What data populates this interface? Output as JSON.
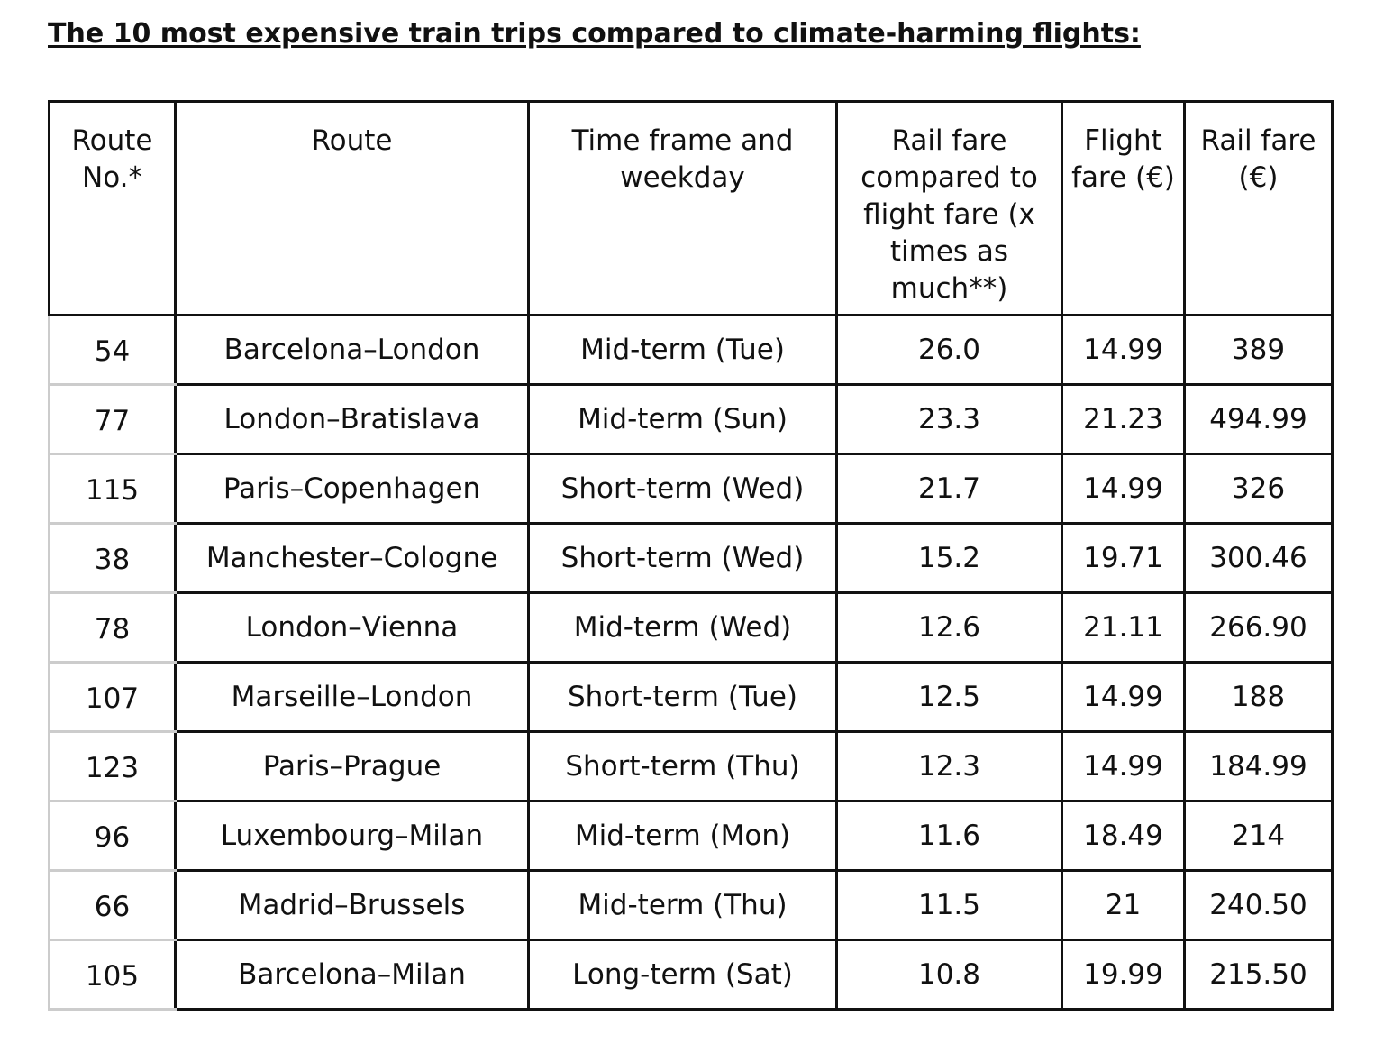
{
  "title": "The 10 most expensive train trips compared to climate-harming flights:",
  "table": {
    "headers": [
      "Route No.*",
      "Route",
      "Time frame and weekday",
      "Rail fare compared to flight fare (x times as much**)",
      "Flight fare (€)",
      "Rail fare (€)"
    ],
    "rows": [
      [
        "54",
        "Barcelona–London",
        "Mid-term (Tue)",
        "26.0",
        "14.99",
        "389"
      ],
      [
        "77",
        "London–Bratislava",
        "Mid-term (Sun)",
        "23.3",
        "21.23",
        "494.99"
      ],
      [
        "115",
        "Paris–Copenhagen",
        "Short-term (Wed)",
        "21.7",
        "14.99",
        "326"
      ],
      [
        "38",
        "Manchester–Cologne",
        "Short-term (Wed)",
        "15.2",
        "19.71",
        "300.46"
      ],
      [
        "78",
        "London–Vienna",
        "Mid-term (Wed)",
        "12.6",
        "21.11",
        "266.90"
      ],
      [
        "107",
        "Marseille–London",
        "Short-term (Tue)",
        "12.5",
        "14.99",
        "188"
      ],
      [
        "123",
        "Paris–Prague",
        "Short-term (Thu)",
        "12.3",
        "14.99",
        "184.99"
      ],
      [
        "96",
        "Luxembourg–Milan",
        "Mid-term (Mon)",
        "11.6",
        "18.49",
        "214"
      ],
      [
        "66",
        "Madrid–Brussels",
        "Mid-term (Thu)",
        "11.5",
        "21",
        "240.50"
      ],
      [
        "105",
        "Barcelona–Milan",
        "Long-term (Sat)",
        "10.8",
        "19.99",
        "215.50"
      ]
    ]
  }
}
